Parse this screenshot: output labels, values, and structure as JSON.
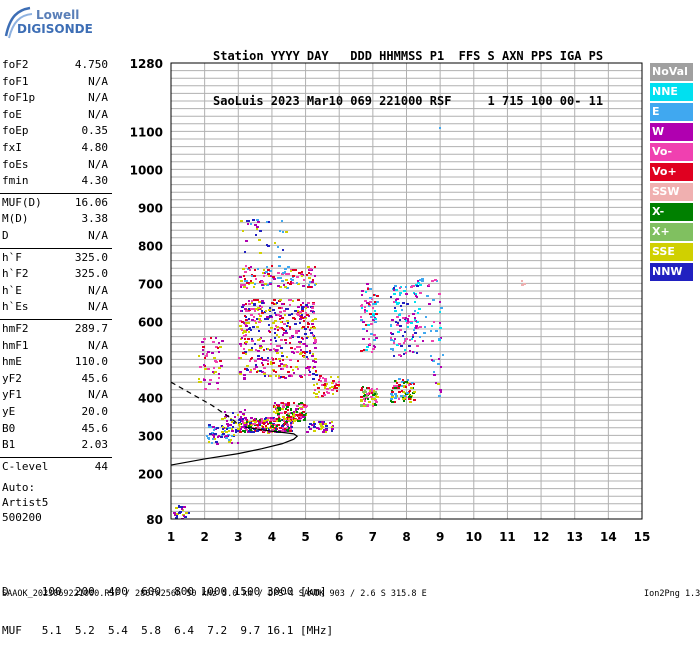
{
  "logo": {
    "top": "Lowell",
    "bottom": "DIGISONDE"
  },
  "header": {
    "line1": "Station YYYY DAY   DDD HHMMSS P1  FFS S AXN PPS IGA PS",
    "line2": "SaoLuis 2023 Mar10 069 221000 RSF     1 715 100 00- 11"
  },
  "params": [
    {
      "label": "foF2",
      "value": "4.750"
    },
    {
      "label": "foF1",
      "value": "N/A"
    },
    {
      "label": "foF1p",
      "value": "N/A"
    },
    {
      "label": "foE",
      "value": "N/A"
    },
    {
      "label": "foEp",
      "value": "0.35"
    },
    {
      "label": "fxI",
      "value": "4.80"
    },
    {
      "label": "foEs",
      "value": "N/A"
    },
    {
      "label": "fmin",
      "value": "4.30"
    },
    {
      "label": "MUF(D)",
      "value": "16.06"
    },
    {
      "label": "M(D)",
      "value": "3.38"
    },
    {
      "label": "D",
      "value": "N/A"
    },
    {
      "label": "h`F",
      "value": "325.0"
    },
    {
      "label": "h`F2",
      "value": "325.0"
    },
    {
      "label": "h`E",
      "value": "N/A"
    },
    {
      "label": "h`Es",
      "value": "N/A"
    },
    {
      "label": "hmF2",
      "value": "289.7"
    },
    {
      "label": "hmF1",
      "value": "N/A"
    },
    {
      "label": "hmE",
      "value": "110.0"
    },
    {
      "label": "yF2",
      "value": "45.6"
    },
    {
      "label": "yF1",
      "value": "N/A"
    },
    {
      "label": "yE",
      "value": "20.0"
    },
    {
      "label": "B0",
      "value": "45.6"
    },
    {
      "label": "B1",
      "value": "2.03"
    },
    {
      "label": "C-level",
      "value": "44"
    }
  ],
  "auto": {
    "line1": "Auto:",
    "line2": "Artist5",
    "line3": "500200"
  },
  "legend": [
    {
      "label": "NoVal",
      "color": "#a0a0a0"
    },
    {
      "label": "NNE",
      "color": "#00e0f0"
    },
    {
      "label": "E",
      "color": "#40a8f0"
    },
    {
      "label": "W",
      "color": "#b000b0"
    },
    {
      "label": "Vo-",
      "color": "#f040b0"
    },
    {
      "label": "Vo+",
      "color": "#e00020"
    },
    {
      "label": "SSW",
      "color": "#f0b0b0"
    },
    {
      "label": "X-",
      "color": "#008000"
    },
    {
      "label": "X+",
      "color": "#80c060"
    },
    {
      "label": "SSE",
      "color": "#d0d000"
    },
    {
      "label": "NNW",
      "color": "#2020c0"
    }
  ],
  "dmuf": {
    "d_line": "D     100  200  400  600  800 1000 1500 3000 [km]",
    "muf_line": "MUF   5.1  5.2  5.4  5.8  6.4  7.2  9.7 16.1 [MHz]"
  },
  "footer": {
    "left": "SAAOK_2023069221000.RSF / 280fx256h 50 kHz 5.0 km / DPS-4 SAAOK 903 / 2.6 S 315.8 E",
    "right": "Ion2Png 1.3.17"
  },
  "chart_data": {
    "type": "scatter",
    "xlim": [
      1,
      15
    ],
    "ylim": [
      80,
      1280
    ],
    "x_ticks": [
      "1",
      "2",
      "3",
      "4",
      "5",
      "6",
      "7",
      "8",
      "9",
      "10",
      "11",
      "12",
      "13",
      "14",
      "15"
    ],
    "y_ticks": [
      {
        "value": 1280,
        "label": "1280"
      },
      {
        "value": 1100,
        "label": "1100"
      },
      {
        "value": 1000,
        "label": "1000"
      },
      {
        "value": 900,
        "label": "900"
      },
      {
        "value": 800,
        "label": "800"
      },
      {
        "value": 700,
        "label": "700"
      },
      {
        "value": 600,
        "label": "600"
      },
      {
        "value": 500,
        "label": "500"
      },
      {
        "value": 400,
        "label": "400"
      },
      {
        "value": 300,
        "label": "300"
      },
      {
        "value": 200,
        "label": "200"
      },
      {
        "value": 80,
        "label": "80"
      }
    ],
    "grid": true,
    "echo_clusters": [
      {
        "x": [
          1.0,
          1.5
        ],
        "y": [
          80,
          120
        ],
        "n": 20,
        "colors": [
          "#2020c0",
          "#b000b0",
          "#d0d000"
        ]
      },
      {
        "x": [
          2.0,
          3.0
        ],
        "y": [
          280,
          330
        ],
        "n": 60,
        "colors": [
          "#d0d000",
          "#b000b0",
          "#2020c0",
          "#40a8f0"
        ]
      },
      {
        "x": [
          3.0,
          4.6
        ],
        "y": [
          310,
          350
        ],
        "n": 200,
        "colors": [
          "#d0d000",
          "#b000b0",
          "#f040b0",
          "#e00020",
          "#2020c0",
          "#008000"
        ]
      },
      {
        "x": [
          4.0,
          5.0
        ],
        "y": [
          340,
          390
        ],
        "n": 140,
        "colors": [
          "#e00020",
          "#d0d000",
          "#b000b0",
          "#f040b0",
          "#008000"
        ]
      },
      {
        "x": [
          5.0,
          5.8
        ],
        "y": [
          310,
          340
        ],
        "n": 40,
        "colors": [
          "#d0d000",
          "#2020c0",
          "#b000b0"
        ]
      },
      {
        "x": [
          3.0,
          5.3
        ],
        "y": [
          450,
          660
        ],
        "n": 420,
        "colors": [
          "#b000b0",
          "#f040b0",
          "#2020c0",
          "#e00020",
          "#d0d000"
        ]
      },
      {
        "x": [
          3.0,
          5.3
        ],
        "y": [
          690,
          750
        ],
        "n": 120,
        "colors": [
          "#b000b0",
          "#f040b0",
          "#d0d000",
          "#e00020",
          "#40a8f0"
        ]
      },
      {
        "x": [
          1.8,
          2.5
        ],
        "y": [
          420,
          560
        ],
        "n": 50,
        "colors": [
          "#b000b0",
          "#f040b0",
          "#d0d000",
          "#e00020"
        ]
      },
      {
        "x": [
          2.5,
          3.2
        ],
        "y": [
          320,
          370
        ],
        "n": 40,
        "colors": [
          "#b000b0",
          "#2020c0",
          "#d0d000"
        ]
      },
      {
        "x": [
          5.2,
          6.0
        ],
        "y": [
          400,
          460
        ],
        "n": 50,
        "colors": [
          "#e00020",
          "#d0d000",
          "#f040b0"
        ]
      },
      {
        "x": [
          6.6,
          7.1
        ],
        "y": [
          380,
          430
        ],
        "n": 70,
        "colors": [
          "#d0d000",
          "#008000",
          "#80c060",
          "#e00020",
          "#f040b0"
        ]
      },
      {
        "x": [
          6.6,
          7.1
        ],
        "y": [
          520,
          700
        ],
        "n": 70,
        "colors": [
          "#b000b0",
          "#f040b0",
          "#e00020",
          "#40a8f0",
          "#00e0f0"
        ]
      },
      {
        "x": [
          7.5,
          8.2
        ],
        "y": [
          390,
          450
        ],
        "n": 80,
        "colors": [
          "#d0d000",
          "#e00020",
          "#f040b0",
          "#008000",
          "#40a8f0"
        ]
      },
      {
        "x": [
          7.5,
          8.3
        ],
        "y": [
          510,
          700
        ],
        "n": 110,
        "colors": [
          "#40a8f0",
          "#00e0f0",
          "#b000b0",
          "#f040b0",
          "#2020c0"
        ]
      },
      {
        "x": [
          8.3,
          9.0
        ],
        "y": [
          550,
          720
        ],
        "n": 40,
        "colors": [
          "#40a8f0",
          "#00e0f0",
          "#b000b0",
          "#f040b0"
        ]
      },
      {
        "x": [
          8.7,
          9.1
        ],
        "y": [
          400,
          520
        ],
        "n": 14,
        "colors": [
          "#b000b0",
          "#40a8f0",
          "#d0d000"
        ]
      },
      {
        "x": [
          3.0,
          4.5
        ],
        "y": [
          770,
          870
        ],
        "n": 30,
        "colors": [
          "#40a8f0",
          "#b000b0",
          "#d0d000",
          "#2020c0"
        ]
      },
      {
        "x": [
          11.4,
          11.5
        ],
        "y": [
          690,
          710
        ],
        "n": 4,
        "colors": [
          "#f0b0b0"
        ]
      },
      {
        "x": [
          8.9,
          9.0
        ],
        "y": [
          1110,
          1120
        ],
        "n": 1,
        "colors": [
          "#40a8f0"
        ]
      }
    ],
    "profile_solid": [
      {
        "x": 1.0,
        "y": 222
      },
      {
        "x": 2.0,
        "y": 238
      },
      {
        "x": 3.0,
        "y": 252
      },
      {
        "x": 3.7,
        "y": 265
      },
      {
        "x": 4.3,
        "y": 278
      },
      {
        "x": 4.65,
        "y": 290
      },
      {
        "x": 4.75,
        "y": 298
      },
      {
        "x": 4.65,
        "y": 304
      },
      {
        "x": 4.4,
        "y": 307
      },
      {
        "x": 4.0,
        "y": 311
      },
      {
        "x": 3.6,
        "y": 316
      },
      {
        "x": 3.2,
        "y": 322
      }
    ],
    "profile_dashed": [
      {
        "x": 1.0,
        "y": 440
      },
      {
        "x": 1.6,
        "y": 410
      },
      {
        "x": 2.2,
        "y": 380
      },
      {
        "x": 2.7,
        "y": 350
      },
      {
        "x": 3.0,
        "y": 330
      }
    ]
  }
}
